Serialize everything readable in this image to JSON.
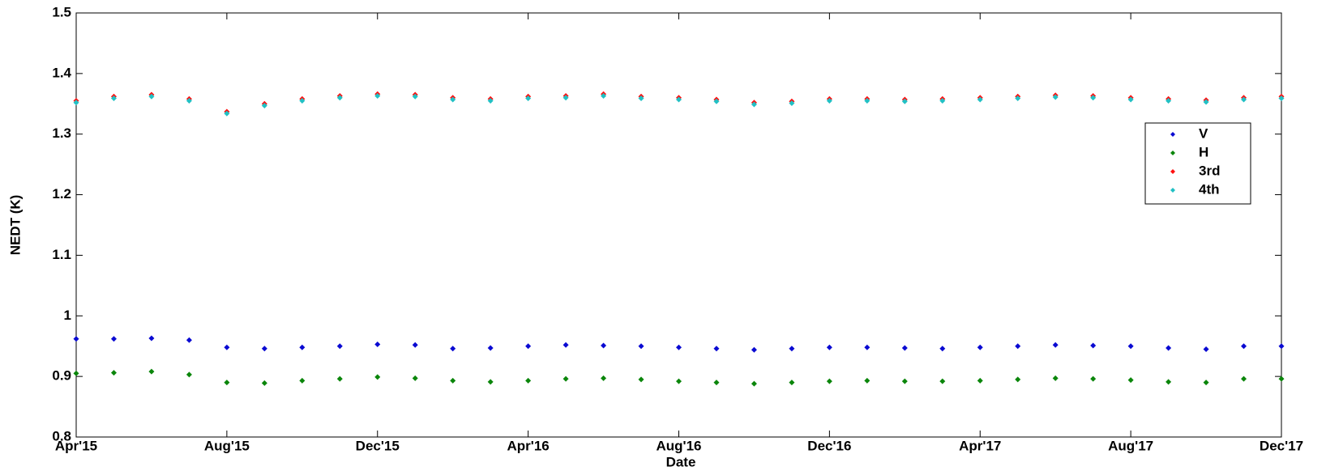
{
  "chart_data": {
    "type": "scatter",
    "x_label": "Date",
    "y_label": "NEDT (K)",
    "x": [
      0,
      1,
      2,
      3,
      4,
      5,
      6,
      7,
      8,
      9,
      10,
      11,
      12,
      13,
      14,
      15,
      16,
      17,
      18,
      19,
      20,
      21,
      22,
      23,
      24,
      25,
      26,
      27,
      28,
      29,
      30,
      31,
      32
    ],
    "xlim": [
      0,
      32
    ],
    "xticks": [
      {
        "value": 0,
        "label": "Apr'15"
      },
      {
        "value": 4,
        "label": "Aug'15"
      },
      {
        "value": 8,
        "label": "Dec'15"
      },
      {
        "value": 12,
        "label": "Apr'16"
      },
      {
        "value": 16,
        "label": "Aug'16"
      },
      {
        "value": 20,
        "label": "Dec'16"
      },
      {
        "value": 24,
        "label": "Apr'17"
      },
      {
        "value": 28,
        "label": "Aug'17"
      },
      {
        "value": 32,
        "label": "Dec'17"
      }
    ],
    "ylim": [
      0.8,
      1.5
    ],
    "yticks": [
      0.8,
      0.9,
      1,
      1.1,
      1.2,
      1.3,
      1.4,
      1.5
    ],
    "grid": false,
    "legend": "right",
    "series": [
      {
        "name": "V",
        "color": "#0a0ad2",
        "values": [
          0.962,
          0.962,
          0.963,
          0.96,
          0.948,
          0.946,
          0.948,
          0.95,
          0.953,
          0.952,
          0.946,
          0.947,
          0.95,
          0.952,
          0.951,
          0.95,
          0.948,
          0.946,
          0.944,
          0.946,
          0.948,
          0.948,
          0.947,
          0.946,
          0.948,
          0.95,
          0.952,
          0.951,
          0.95,
          0.947,
          0.945,
          0.95,
          0.95
        ]
      },
      {
        "name": "H",
        "color": "#0b860b",
        "values": [
          0.905,
          0.906,
          0.908,
          0.903,
          0.89,
          0.889,
          0.893,
          0.896,
          0.899,
          0.897,
          0.893,
          0.891,
          0.893,
          0.896,
          0.897,
          0.895,
          0.892,
          0.89,
          0.888,
          0.89,
          0.892,
          0.893,
          0.892,
          0.892,
          0.893,
          0.895,
          0.897,
          0.896,
          0.894,
          0.891,
          0.89,
          0.896,
          0.896
        ]
      },
      {
        "name": "3rd",
        "color": "#ff1010",
        "values": [
          1.355,
          1.362,
          1.365,
          1.358,
          1.337,
          1.35,
          1.358,
          1.363,
          1.366,
          1.365,
          1.36,
          1.358,
          1.362,
          1.363,
          1.366,
          1.362,
          1.36,
          1.357,
          1.352,
          1.354,
          1.358,
          1.358,
          1.357,
          1.358,
          1.36,
          1.362,
          1.364,
          1.363,
          1.36,
          1.358,
          1.356,
          1.36,
          1.362
        ]
      },
      {
        "name": "4th",
        "color": "#22c0c4",
        "values": [
          1.352,
          1.359,
          1.362,
          1.355,
          1.334,
          1.347,
          1.355,
          1.36,
          1.363,
          1.362,
          1.357,
          1.355,
          1.359,
          1.36,
          1.363,
          1.359,
          1.357,
          1.354,
          1.349,
          1.351,
          1.355,
          1.355,
          1.354,
          1.355,
          1.357,
          1.359,
          1.361,
          1.36,
          1.357,
          1.355,
          1.353,
          1.357,
          1.359
        ]
      }
    ]
  }
}
